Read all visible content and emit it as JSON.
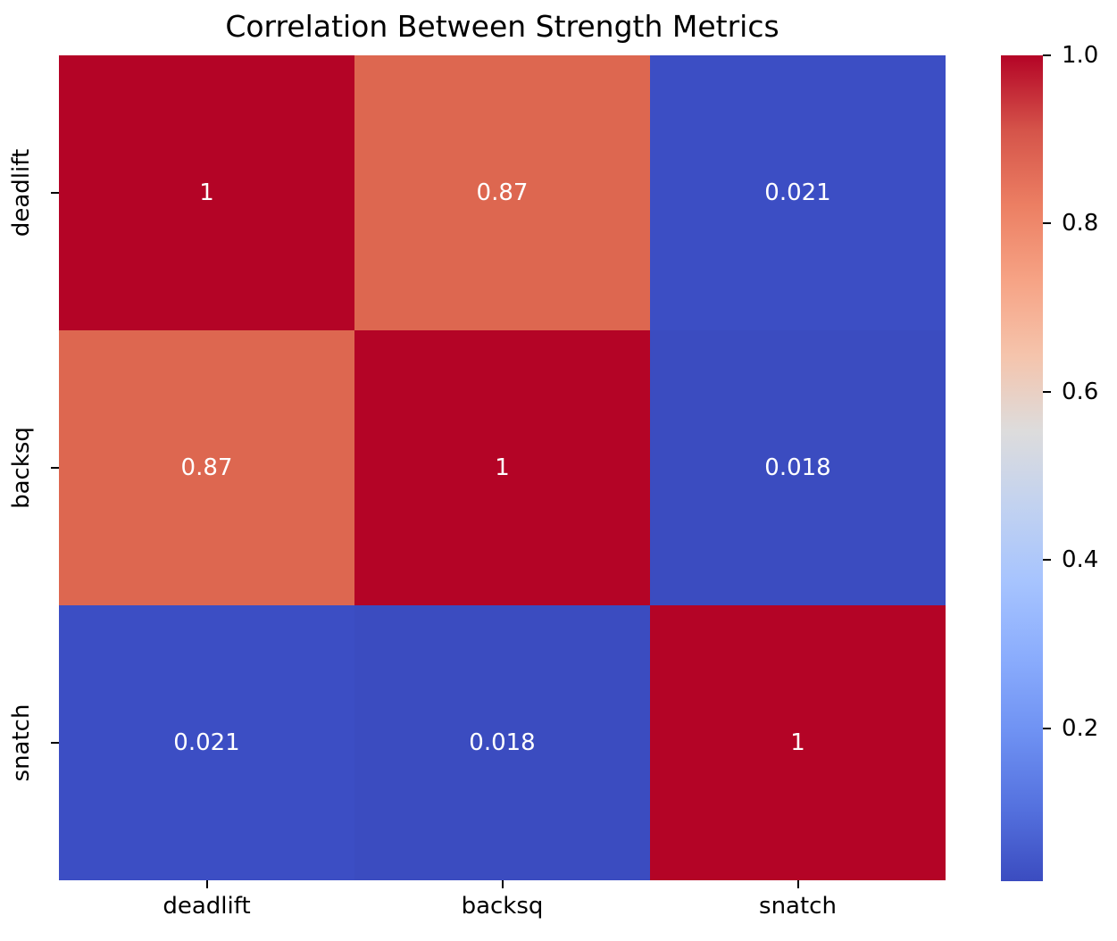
{
  "figure": {
    "background_color": "#ffffff",
    "text_color": "#000000"
  },
  "chart_data": {
    "type": "heatmap",
    "title": "Correlation Between Strength Metrics",
    "xlabel": "",
    "ylabel": "",
    "x_categories": [
      "deadlift",
      "backsq",
      "snatch"
    ],
    "y_categories": [
      "deadlift",
      "backsq",
      "snatch"
    ],
    "matrix": [
      [
        1.0,
        0.87,
        0.021
      ],
      [
        0.87,
        1.0,
        0.018
      ],
      [
        0.021,
        0.018,
        1.0
      ]
    ],
    "cell_labels": [
      [
        "1",
        "0.87",
        "0.021"
      ],
      [
        "0.87",
        "1",
        "0.018"
      ],
      [
        "0.021",
        "0.018",
        "1"
      ]
    ],
    "cell_colors": [
      [
        "#b40426",
        "#dd6750",
        "#3c4ec4"
      ],
      [
        "#dd6750",
        "#b40426",
        "#3b4cc0"
      ],
      [
        "#3c4ec4",
        "#3b4cc0",
        "#b40426"
      ]
    ],
    "annotation_text_color": "#ffffff",
    "colormap": "coolwarm",
    "vmin": 0.018,
    "vmax": 1.0,
    "grid": false,
    "legend_position": "right-colorbar",
    "colorbar": {
      "ticks": [
        {
          "label": "1.0",
          "value": 1.0
        },
        {
          "label": "0.8",
          "value": 0.8
        },
        {
          "label": "0.6",
          "value": 0.6
        },
        {
          "label": "0.4",
          "value": 0.4
        },
        {
          "label": "0.2",
          "value": 0.2
        }
      ],
      "gradient_top_to_bottom": [
        "#b40426",
        "#d5544a",
        "#ec7f63",
        "#f6a385",
        "#f5c4ac",
        "#dddcdc",
        "#c2d2f0",
        "#a7c4fe",
        "#8badfd",
        "#6f92f3",
        "#5572df",
        "#3b4cc0"
      ]
    }
  }
}
